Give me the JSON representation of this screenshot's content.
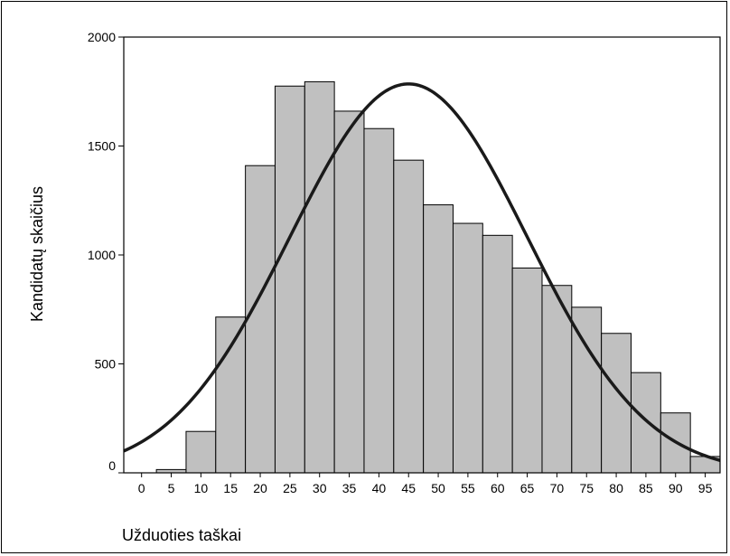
{
  "chart_data": {
    "type": "bar",
    "title": "",
    "xlabel": "Užduoties taškai",
    "ylabel": "Kandidatų skaičius",
    "xlim": [
      -3,
      97.5
    ],
    "ylim": [
      0,
      2000
    ],
    "x_ticks": [
      "0",
      "5",
      "10",
      "15",
      "20",
      "25",
      "30",
      "35",
      "40",
      "45",
      "50",
      "55",
      "60",
      "65",
      "70",
      "75",
      "80",
      "85",
      "90",
      "95"
    ],
    "y_ticks": [
      "0",
      "500",
      "1000",
      "1500",
      "2000"
    ],
    "grid": false,
    "legend": "none",
    "bin_width": 5,
    "bar_color": "#c0c0c0",
    "bins": [
      {
        "center": 5,
        "value": 15
      },
      {
        "center": 10,
        "value": 190
      },
      {
        "center": 15,
        "value": 715
      },
      {
        "center": 20,
        "value": 1410
      },
      {
        "center": 25,
        "value": 1775
      },
      {
        "center": 30,
        "value": 1795
      },
      {
        "center": 35,
        "value": 1660
      },
      {
        "center": 40,
        "value": 1580
      },
      {
        "center": 45,
        "value": 1435
      },
      {
        "center": 50,
        "value": 1230
      },
      {
        "center": 55,
        "value": 1145
      },
      {
        "center": 60,
        "value": 1090
      },
      {
        "center": 65,
        "value": 940
      },
      {
        "center": 70,
        "value": 860
      },
      {
        "center": 75,
        "value": 760
      },
      {
        "center": 80,
        "value": 640
      },
      {
        "center": 85,
        "value": 460
      },
      {
        "center": 90,
        "value": 275
      },
      {
        "center": 95,
        "value": 75
      }
    ],
    "normal_curve": {
      "mean": 45,
      "sd": 20,
      "peak": 1785,
      "x_range": [
        -3,
        97.5
      ]
    }
  }
}
